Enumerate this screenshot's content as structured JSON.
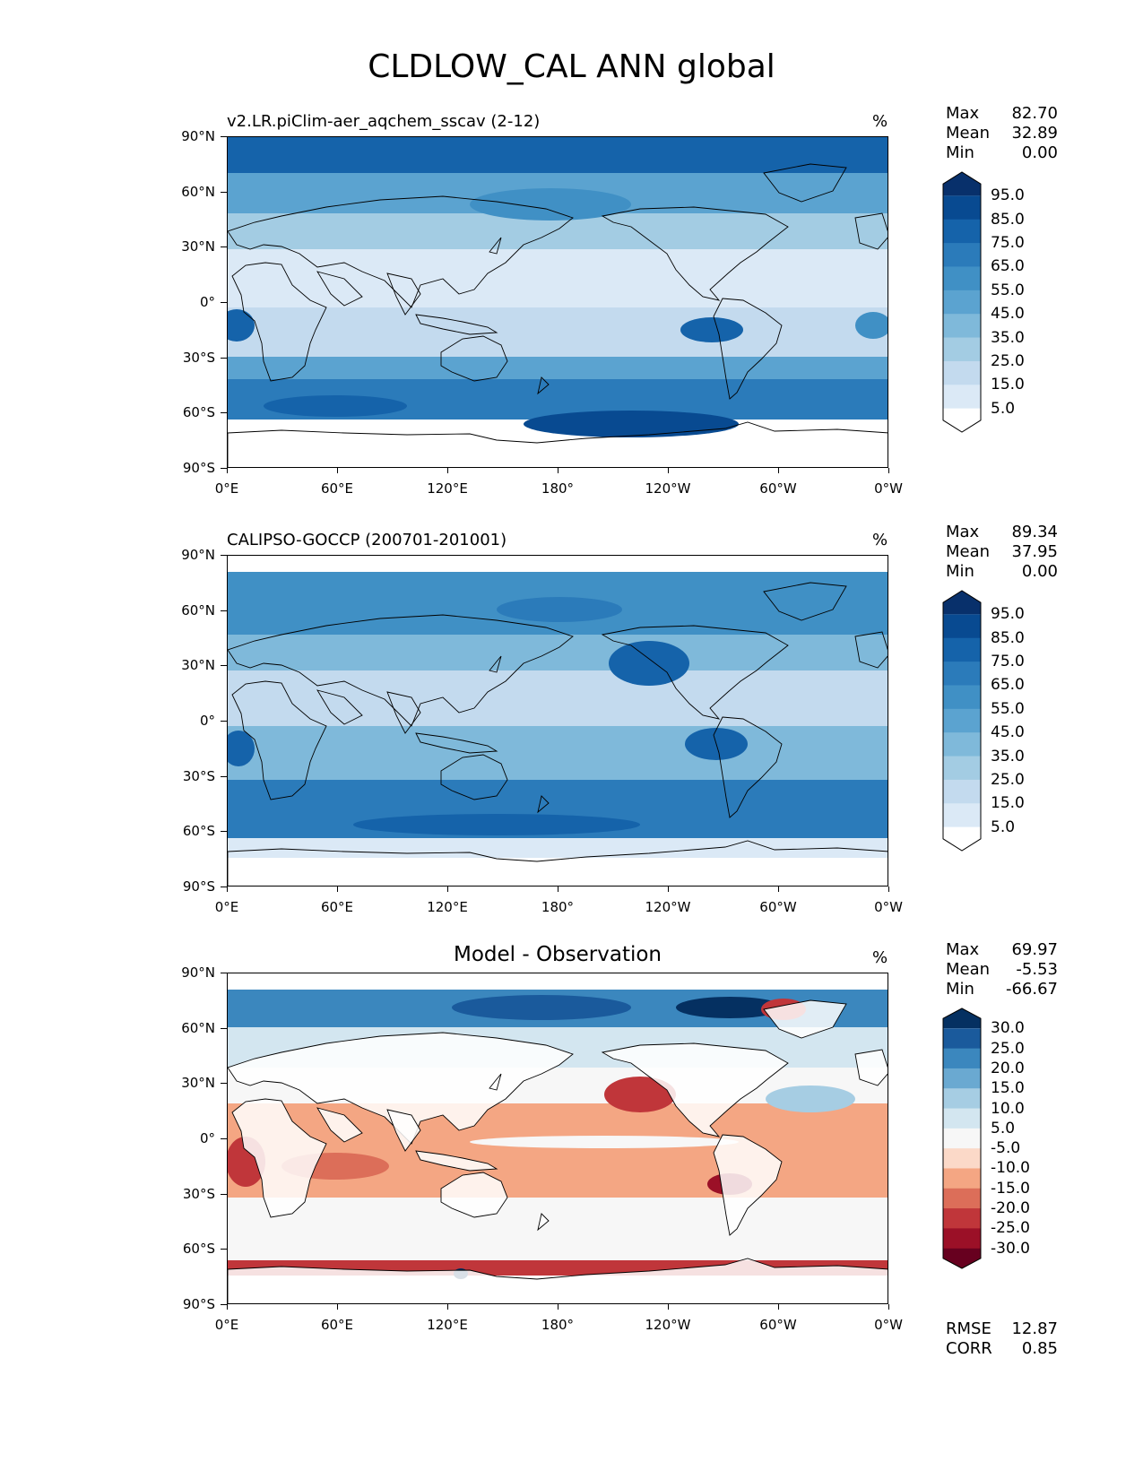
{
  "title": "CLDLOW_CAL ANN global",
  "axes": {
    "lat_labels": [
      "90°N",
      "60°N",
      "30°N",
      "0°",
      "30°S",
      "60°S",
      "90°S"
    ],
    "lon_labels": [
      "0°E",
      "60°E",
      "120°E",
      "180°",
      "120°W",
      "60°W",
      "0°W"
    ]
  },
  "panels": [
    {
      "title": "v2.LR.piClim-aer_aqchem_sscav (2-12)",
      "title_position": "left",
      "units": "%",
      "stats": [
        {
          "label": "Max",
          "value": "82.70"
        },
        {
          "label": "Mean",
          "value": "32.89"
        },
        {
          "label": "Min",
          "value": "0.00"
        }
      ],
      "colorbar": {
        "labels": [
          "95.0",
          "85.0",
          "75.0",
          "65.0",
          "55.0",
          "45.0",
          "35.0",
          "25.0",
          "15.0",
          "5.0"
        ],
        "colors": [
          "#08306b",
          "#084a91",
          "#1563aa",
          "#2b7bba",
          "#4090c5",
          "#5ba3d0",
          "#7fb9da",
          "#a3cce3",
          "#c3daee",
          "#dbe9f6",
          "#ffffff"
        ]
      }
    },
    {
      "title": "CALIPSO-GOCCP (200701-201001)",
      "title_position": "left",
      "units": "%",
      "stats": [
        {
          "label": "Max",
          "value": "89.34"
        },
        {
          "label": "Mean",
          "value": "37.95"
        },
        {
          "label": "Min",
          "value": "0.00"
        }
      ],
      "colorbar": {
        "labels": [
          "95.0",
          "85.0",
          "75.0",
          "65.0",
          "55.0",
          "45.0",
          "35.0",
          "25.0",
          "15.0",
          "5.0"
        ],
        "colors": [
          "#08306b",
          "#084a91",
          "#1563aa",
          "#2b7bba",
          "#4090c5",
          "#5ba3d0",
          "#7fb9da",
          "#a3cce3",
          "#c3daee",
          "#dbe9f6",
          "#ffffff"
        ]
      }
    },
    {
      "title": "Model - Observation",
      "title_position": "center",
      "units": "%",
      "stats": [
        {
          "label": "Max",
          "value": "69.97"
        },
        {
          "label": "Mean",
          "value": "-5.53"
        },
        {
          "label": "Min",
          "value": "-66.67"
        }
      ],
      "colorbar": {
        "labels": [
          "30.0",
          "25.0",
          "20.0",
          "15.0",
          "10.0",
          "5.0",
          "-5.0",
          "-10.0",
          "-15.0",
          "-20.0",
          "-25.0",
          "-30.0"
        ],
        "colors": [
          "#053061",
          "#1a5a9c",
          "#3b87be",
          "#6aa9d1",
          "#a6cde3",
          "#d3e6f0",
          "#f7f7f7",
          "#fbd9c8",
          "#f4a683",
          "#dc6e59",
          "#c0363a",
          "#9b1027",
          "#67001f"
        ]
      },
      "footer": [
        {
          "label": "RMSE",
          "value": "12.87"
        },
        {
          "label": "CORR",
          "value": "0.85"
        }
      ]
    }
  ]
}
